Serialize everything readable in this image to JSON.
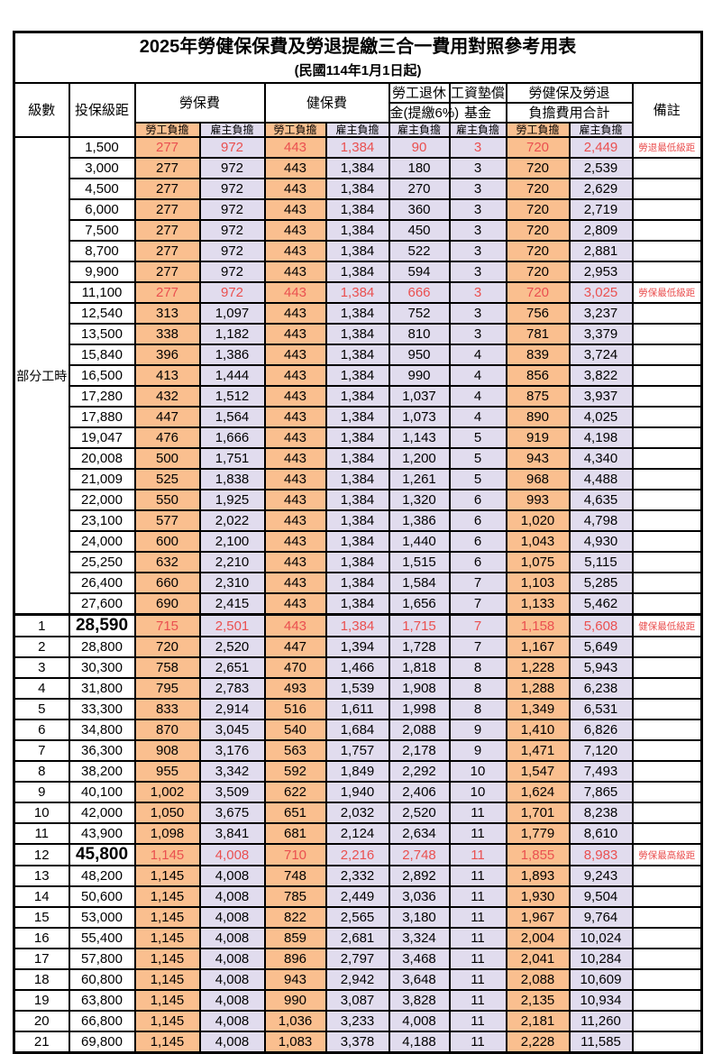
{
  "title": "2025年勞健保保費及勞退提繳三合一費用對照參考用表",
  "subtitle": "(民國114年1月1日起)",
  "colors": {
    "employee_fill": "#FABF8F",
    "employer_fill": "#E1DCEE",
    "highlight_text": "#EA5050",
    "border": "#000000"
  },
  "header": {
    "level": "級數",
    "bracket": "投保級距",
    "labor_insurance": "勞保費",
    "health_insurance": "健保費",
    "pension_line1": "勞工退休",
    "pension_line2": "金(提繳6%)",
    "wage_fund_line1": "工資墊償",
    "wage_fund_line2": "基金",
    "total_line1": "勞健保及勞退",
    "total_line2": "負擔費用合計",
    "remark": "備註",
    "employee_burden": "勞工負擔",
    "employer_burden": "雇主負擔"
  },
  "part_time_label": "部分工時",
  "rows": [
    {
      "level": "",
      "bracket": "1,500",
      "values": [
        "277",
        "972",
        "443",
        "1,384",
        "90",
        "3",
        "720",
        "2,449"
      ],
      "remark": "勞退最低級距",
      "highlight": true,
      "big": false,
      "thick_top": false
    },
    {
      "level": "",
      "bracket": "3,000",
      "values": [
        "277",
        "972",
        "443",
        "1,384",
        "180",
        "3",
        "720",
        "2,539"
      ],
      "remark": "",
      "highlight": false,
      "big": false,
      "thick_top": false
    },
    {
      "level": "",
      "bracket": "4,500",
      "values": [
        "277",
        "972",
        "443",
        "1,384",
        "270",
        "3",
        "720",
        "2,629"
      ],
      "remark": "",
      "highlight": false,
      "big": false,
      "thick_top": false
    },
    {
      "level": "",
      "bracket": "6,000",
      "values": [
        "277",
        "972",
        "443",
        "1,384",
        "360",
        "3",
        "720",
        "2,719"
      ],
      "remark": "",
      "highlight": false,
      "big": false,
      "thick_top": false
    },
    {
      "level": "",
      "bracket": "7,500",
      "values": [
        "277",
        "972",
        "443",
        "1,384",
        "450",
        "3",
        "720",
        "2,809"
      ],
      "remark": "",
      "highlight": false,
      "big": false,
      "thick_top": false
    },
    {
      "level": "",
      "bracket": "8,700",
      "values": [
        "277",
        "972",
        "443",
        "1,384",
        "522",
        "3",
        "720",
        "2,881"
      ],
      "remark": "",
      "highlight": false,
      "big": false,
      "thick_top": false
    },
    {
      "level": "",
      "bracket": "9,900",
      "values": [
        "277",
        "972",
        "443",
        "1,384",
        "594",
        "3",
        "720",
        "2,953"
      ],
      "remark": "",
      "highlight": false,
      "big": false,
      "thick_top": false
    },
    {
      "level": "",
      "bracket": "11,100",
      "values": [
        "277",
        "972",
        "443",
        "1,384",
        "666",
        "3",
        "720",
        "3,025"
      ],
      "remark": "勞保最低級距",
      "highlight": true,
      "big": false,
      "thick_top": false
    },
    {
      "level": "",
      "bracket": "12,540",
      "values": [
        "313",
        "1,097",
        "443",
        "1,384",
        "752",
        "3",
        "756",
        "3,237"
      ],
      "remark": "",
      "highlight": false,
      "big": false,
      "thick_top": false
    },
    {
      "level": "",
      "bracket": "13,500",
      "values": [
        "338",
        "1,182",
        "443",
        "1,384",
        "810",
        "3",
        "781",
        "3,379"
      ],
      "remark": "",
      "highlight": false,
      "big": false,
      "thick_top": false
    },
    {
      "level": "",
      "bracket": "15,840",
      "values": [
        "396",
        "1,386",
        "443",
        "1,384",
        "950",
        "4",
        "839",
        "3,724"
      ],
      "remark": "",
      "highlight": false,
      "big": false,
      "thick_top": false
    },
    {
      "level": "",
      "bracket": "16,500",
      "values": [
        "413",
        "1,444",
        "443",
        "1,384",
        "990",
        "4",
        "856",
        "3,822"
      ],
      "remark": "",
      "highlight": false,
      "big": false,
      "thick_top": false
    },
    {
      "level": "",
      "bracket": "17,280",
      "values": [
        "432",
        "1,512",
        "443",
        "1,384",
        "1,037",
        "4",
        "875",
        "3,937"
      ],
      "remark": "",
      "highlight": false,
      "big": false,
      "thick_top": false
    },
    {
      "level": "",
      "bracket": "17,880",
      "values": [
        "447",
        "1,564",
        "443",
        "1,384",
        "1,073",
        "4",
        "890",
        "4,025"
      ],
      "remark": "",
      "highlight": false,
      "big": false,
      "thick_top": false
    },
    {
      "level": "",
      "bracket": "19,047",
      "values": [
        "476",
        "1,666",
        "443",
        "1,384",
        "1,143",
        "5",
        "919",
        "4,198"
      ],
      "remark": "",
      "highlight": false,
      "big": false,
      "thick_top": false
    },
    {
      "level": "",
      "bracket": "20,008",
      "values": [
        "500",
        "1,751",
        "443",
        "1,384",
        "1,200",
        "5",
        "943",
        "4,340"
      ],
      "remark": "",
      "highlight": false,
      "big": false,
      "thick_top": false
    },
    {
      "level": "",
      "bracket": "21,009",
      "values": [
        "525",
        "1,838",
        "443",
        "1,384",
        "1,261",
        "5",
        "968",
        "4,488"
      ],
      "remark": "",
      "highlight": false,
      "big": false,
      "thick_top": false
    },
    {
      "level": "",
      "bracket": "22,000",
      "values": [
        "550",
        "1,925",
        "443",
        "1,384",
        "1,320",
        "6",
        "993",
        "4,635"
      ],
      "remark": "",
      "highlight": false,
      "big": false,
      "thick_top": false
    },
    {
      "level": "",
      "bracket": "23,100",
      "values": [
        "577",
        "2,022",
        "443",
        "1,384",
        "1,386",
        "6",
        "1,020",
        "4,798"
      ],
      "remark": "",
      "highlight": false,
      "big": false,
      "thick_top": false
    },
    {
      "level": "",
      "bracket": "24,000",
      "values": [
        "600",
        "2,100",
        "443",
        "1,384",
        "1,440",
        "6",
        "1,043",
        "4,930"
      ],
      "remark": "",
      "highlight": false,
      "big": false,
      "thick_top": false
    },
    {
      "level": "",
      "bracket": "25,250",
      "values": [
        "632",
        "2,210",
        "443",
        "1,384",
        "1,515",
        "6",
        "1,075",
        "5,115"
      ],
      "remark": "",
      "highlight": false,
      "big": false,
      "thick_top": false
    },
    {
      "level": "",
      "bracket": "26,400",
      "values": [
        "660",
        "2,310",
        "443",
        "1,384",
        "1,584",
        "7",
        "1,103",
        "5,285"
      ],
      "remark": "",
      "highlight": false,
      "big": false,
      "thick_top": false
    },
    {
      "level": "",
      "bracket": "27,600",
      "values": [
        "690",
        "2,415",
        "443",
        "1,384",
        "1,656",
        "7",
        "1,133",
        "5,462"
      ],
      "remark": "",
      "highlight": false,
      "big": false,
      "thick_top": false
    },
    {
      "level": "1",
      "bracket": "28,590",
      "values": [
        "715",
        "2,501",
        "443",
        "1,384",
        "1,715",
        "7",
        "1,158",
        "5,608"
      ],
      "remark": "健保最低級距",
      "highlight": true,
      "big": true,
      "thick_top": true
    },
    {
      "level": "2",
      "bracket": "28,800",
      "values": [
        "720",
        "2,520",
        "447",
        "1,394",
        "1,728",
        "7",
        "1,167",
        "5,649"
      ],
      "remark": "",
      "highlight": false,
      "big": false,
      "thick_top": false
    },
    {
      "level": "3",
      "bracket": "30,300",
      "values": [
        "758",
        "2,651",
        "470",
        "1,466",
        "1,818",
        "8",
        "1,228",
        "5,943"
      ],
      "remark": "",
      "highlight": false,
      "big": false,
      "thick_top": false
    },
    {
      "level": "4",
      "bracket": "31,800",
      "values": [
        "795",
        "2,783",
        "493",
        "1,539",
        "1,908",
        "8",
        "1,288",
        "6,238"
      ],
      "remark": "",
      "highlight": false,
      "big": false,
      "thick_top": false
    },
    {
      "level": "5",
      "bracket": "33,300",
      "values": [
        "833",
        "2,914",
        "516",
        "1,611",
        "1,998",
        "8",
        "1,349",
        "6,531"
      ],
      "remark": "",
      "highlight": false,
      "big": false,
      "thick_top": false
    },
    {
      "level": "6",
      "bracket": "34,800",
      "values": [
        "870",
        "3,045",
        "540",
        "1,684",
        "2,088",
        "9",
        "1,410",
        "6,826"
      ],
      "remark": "",
      "highlight": false,
      "big": false,
      "thick_top": false
    },
    {
      "level": "7",
      "bracket": "36,300",
      "values": [
        "908",
        "3,176",
        "563",
        "1,757",
        "2,178",
        "9",
        "1,471",
        "7,120"
      ],
      "remark": "",
      "highlight": false,
      "big": false,
      "thick_top": false
    },
    {
      "level": "8",
      "bracket": "38,200",
      "values": [
        "955",
        "3,342",
        "592",
        "1,849",
        "2,292",
        "10",
        "1,547",
        "7,493"
      ],
      "remark": "",
      "highlight": false,
      "big": false,
      "thick_top": false
    },
    {
      "level": "9",
      "bracket": "40,100",
      "values": [
        "1,002",
        "3,509",
        "622",
        "1,940",
        "2,406",
        "10",
        "1,624",
        "7,865"
      ],
      "remark": "",
      "highlight": false,
      "big": false,
      "thick_top": false
    },
    {
      "level": "10",
      "bracket": "42,000",
      "values": [
        "1,050",
        "3,675",
        "651",
        "2,032",
        "2,520",
        "11",
        "1,701",
        "8,238"
      ],
      "remark": "",
      "highlight": false,
      "big": false,
      "thick_top": false
    },
    {
      "level": "11",
      "bracket": "43,900",
      "values": [
        "1,098",
        "3,841",
        "681",
        "2,124",
        "2,634",
        "11",
        "1,779",
        "8,610"
      ],
      "remark": "",
      "highlight": false,
      "big": false,
      "thick_top": false
    },
    {
      "level": "12",
      "bracket": "45,800",
      "values": [
        "1,145",
        "4,008",
        "710",
        "2,216",
        "2,748",
        "11",
        "1,855",
        "8,983"
      ],
      "remark": "勞保最高級距",
      "highlight": true,
      "big": true,
      "thick_top": false
    },
    {
      "level": "13",
      "bracket": "48,200",
      "values": [
        "1,145",
        "4,008",
        "748",
        "2,332",
        "2,892",
        "11",
        "1,893",
        "9,243"
      ],
      "remark": "",
      "highlight": false,
      "big": false,
      "thick_top": false
    },
    {
      "level": "14",
      "bracket": "50,600",
      "values": [
        "1,145",
        "4,008",
        "785",
        "2,449",
        "3,036",
        "11",
        "1,930",
        "9,504"
      ],
      "remark": "",
      "highlight": false,
      "big": false,
      "thick_top": false
    },
    {
      "level": "15",
      "bracket": "53,000",
      "values": [
        "1,145",
        "4,008",
        "822",
        "2,565",
        "3,180",
        "11",
        "1,967",
        "9,764"
      ],
      "remark": "",
      "highlight": false,
      "big": false,
      "thick_top": false
    },
    {
      "level": "16",
      "bracket": "55,400",
      "values": [
        "1,145",
        "4,008",
        "859",
        "2,681",
        "3,324",
        "11",
        "2,004",
        "10,024"
      ],
      "remark": "",
      "highlight": false,
      "big": false,
      "thick_top": false
    },
    {
      "level": "17",
      "bracket": "57,800",
      "values": [
        "1,145",
        "4,008",
        "896",
        "2,797",
        "3,468",
        "11",
        "2,041",
        "10,284"
      ],
      "remark": "",
      "highlight": false,
      "big": false,
      "thick_top": false
    },
    {
      "level": "18",
      "bracket": "60,800",
      "values": [
        "1,145",
        "4,008",
        "943",
        "2,942",
        "3,648",
        "11",
        "2,088",
        "10,609"
      ],
      "remark": "",
      "highlight": false,
      "big": false,
      "thick_top": false
    },
    {
      "level": "19",
      "bracket": "63,800",
      "values": [
        "1,145",
        "4,008",
        "990",
        "3,087",
        "3,828",
        "11",
        "2,135",
        "10,934"
      ],
      "remark": "",
      "highlight": false,
      "big": false,
      "thick_top": false
    },
    {
      "level": "20",
      "bracket": "66,800",
      "values": [
        "1,145",
        "4,008",
        "1,036",
        "3,233",
        "4,008",
        "11",
        "2,181",
        "11,260"
      ],
      "remark": "",
      "highlight": false,
      "big": false,
      "thick_top": false
    },
    {
      "level": "21",
      "bracket": "69,800",
      "values": [
        "1,145",
        "4,008",
        "1,083",
        "3,378",
        "4,188",
        "11",
        "2,228",
        "11,585"
      ],
      "remark": "",
      "highlight": false,
      "big": false,
      "thick_top": false
    }
  ]
}
